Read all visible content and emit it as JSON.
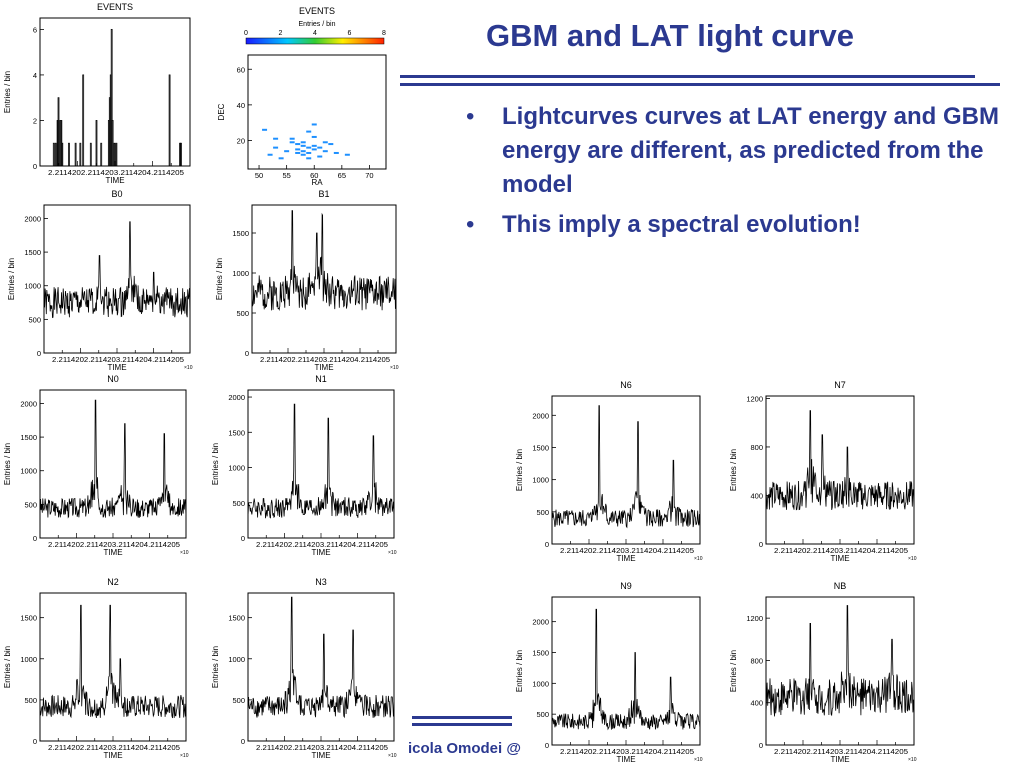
{
  "slide": {
    "title": "GBM and LAT light curve",
    "bullets": [
      "Lightcurves curves at LAT energy and GBM energy are different, as predicted from the model",
      "This imply a spectral evolution!"
    ],
    "bullet_symbol": "•",
    "footer": "icola Omodei @",
    "accent_color": "#2b3990"
  },
  "chart_data": [
    {
      "id": "events-time",
      "type": "bar",
      "title": "EVENTS",
      "xlabel": "TIME",
      "ylabel": "Entries / bin",
      "yticks": [
        0,
        2,
        4,
        6
      ],
      "ylim": [
        0,
        6.5
      ],
      "xtick_labels": [
        "2.2114202.2114203.2114204.2114205"
      ],
      "values": [
        0,
        0,
        0,
        0,
        0,
        0,
        0,
        0,
        0,
        0,
        0,
        0,
        0,
        0,
        1,
        0,
        1,
        0,
        2,
        3,
        0,
        2,
        2,
        1,
        0,
        0,
        0,
        0,
        0,
        0,
        1,
        0,
        0,
        0,
        0,
        0,
        0,
        1,
        0,
        0,
        0,
        0,
        1,
        0,
        0,
        4,
        0,
        0,
        0,
        0,
        0,
        0,
        0,
        1,
        0,
        0,
        0,
        0,
        0,
        2,
        0,
        0,
        0,
        0,
        1,
        0,
        0,
        0,
        0,
        0,
        0,
        0,
        2,
        3,
        4,
        6,
        2,
        0,
        1,
        0,
        1,
        0,
        0,
        0,
        0,
        0,
        0,
        0,
        0,
        0,
        0,
        0,
        0,
        0,
        0,
        0,
        0,
        0,
        0,
        0,
        0,
        0,
        0,
        0,
        0,
        0,
        0,
        0,
        0,
        0,
        0,
        0,
        0,
        0,
        0,
        0,
        0,
        0,
        0,
        0,
        0,
        0,
        0,
        0,
        0,
        0,
        0,
        0,
        0,
        0,
        0,
        0,
        0,
        0,
        0,
        0,
        4,
        0,
        0,
        0,
        0,
        0,
        0,
        0,
        0,
        0,
        0,
        1,
        1,
        0,
        0,
        0,
        0,
        0,
        0,
        0,
        0,
        0
      ]
    },
    {
      "id": "events-radec",
      "type": "heatmap",
      "title": "EVENTS",
      "xlabel": "RA",
      "ylabel": "DEC",
      "colorbar_label": "Entries / bin",
      "colorbar_ticks": [
        0,
        2,
        4,
        6,
        8
      ],
      "xticks": [
        50,
        55,
        60,
        65,
        70
      ],
      "yticks": [
        20,
        40,
        60
      ],
      "xlim": [
        48,
        73
      ],
      "ylim": [
        4,
        68
      ],
      "points": [
        [
          51,
          26
        ],
        [
          53,
          21
        ],
        [
          52,
          12
        ],
        [
          56,
          19
        ],
        [
          57,
          18
        ],
        [
          58,
          17
        ],
        [
          58,
          14
        ],
        [
          59,
          16
        ],
        [
          60,
          15
        ],
        [
          61,
          16
        ],
        [
          62,
          14
        ],
        [
          59,
          13
        ],
        [
          57,
          15
        ],
        [
          60,
          17
        ],
        [
          58,
          12
        ],
        [
          55,
          14
        ],
        [
          63,
          18
        ],
        [
          54,
          10
        ],
        [
          59,
          10
        ],
        [
          61,
          11
        ],
        [
          64,
          13
        ],
        [
          60,
          22
        ],
        [
          59,
          25
        ],
        [
          60,
          29
        ],
        [
          56,
          21
        ],
        [
          62,
          19
        ],
        [
          58,
          19
        ],
        [
          57,
          13
        ],
        [
          53,
          16
        ],
        [
          66,
          12
        ]
      ]
    },
    {
      "id": "b0",
      "type": "line",
      "title": "B0",
      "xlabel": "TIME",
      "ylabel": "Entries / bin",
      "yticks": [
        0,
        500,
        1000,
        1500,
        2000
      ],
      "ylim": [
        0,
        2200
      ],
      "xtick_labels": [
        "2.2114202.2114203.2114204.2114205"
      ],
      "exponent": "×10",
      "base": 750,
      "noise": 230,
      "peaks": [
        [
          0.38,
          1450
        ],
        [
          0.59,
          1950
        ],
        [
          0.75,
          1200
        ]
      ],
      "seed": 1
    },
    {
      "id": "b1",
      "type": "line",
      "title": "B1",
      "xlabel": "TIME",
      "ylabel": "Entries / bin",
      "yticks": [
        0,
        500,
        1000,
        1500
      ],
      "ylim": [
        0,
        1850
      ],
      "xtick_labels": [
        "2.2114202.2114203.2114204.2114205"
      ],
      "exponent": "×10",
      "base": 750,
      "noise": 220,
      "peaks": [
        [
          0.28,
          1780
        ],
        [
          0.49,
          1650
        ],
        [
          0.45,
          1500
        ]
      ],
      "seed": 2
    },
    {
      "id": "n0",
      "type": "line",
      "title": "N0",
      "xlabel": "TIME",
      "ylabel": "Entries / bin",
      "yticks": [
        0,
        500,
        1000,
        1500,
        2000
      ],
      "ylim": [
        0,
        2200
      ],
      "xtick_labels": [
        "2.2114202.2114203.2114204.2114205"
      ],
      "exponent": "×10",
      "base": 450,
      "noise": 150,
      "peaks": [
        [
          0.38,
          2050
        ],
        [
          0.58,
          1700
        ],
        [
          0.85,
          1550
        ]
      ],
      "seed": 3
    },
    {
      "id": "n1",
      "type": "line",
      "title": "N1",
      "xlabel": "TIME",
      "ylabel": "Entries / bin",
      "yticks": [
        0,
        500,
        1000,
        1500,
        2000
      ],
      "ylim": [
        0,
        2100
      ],
      "xtick_labels": [
        "2.2114202.2114203.2114204.2114205"
      ],
      "exponent": "×10",
      "base": 430,
      "noise": 150,
      "peaks": [
        [
          0.32,
          1900
        ],
        [
          0.55,
          1700
        ],
        [
          0.86,
          1450
        ]
      ],
      "seed": 4
    },
    {
      "id": "n6",
      "type": "line",
      "title": "N6",
      "xlabel": "TIME",
      "ylabel": "Entries / bin",
      "yticks": [
        0,
        500,
        1000,
        1500,
        2000
      ],
      "ylim": [
        0,
        2300
      ],
      "xtick_labels": [
        "2.2114202.2114203.2114204.2114205"
      ],
      "exponent": "×10",
      "base": 400,
      "noise": 140,
      "peaks": [
        [
          0.32,
          2150
        ],
        [
          0.58,
          1900
        ],
        [
          0.82,
          1300
        ]
      ],
      "seed": 5
    },
    {
      "id": "n7",
      "type": "line",
      "title": "N7",
      "xlabel": "TIME",
      "ylabel": "Entries / bin",
      "yticks": [
        0,
        400,
        800,
        1200
      ],
      "ylim": [
        0,
        1220
      ],
      "xtick_labels": [
        "2.2114202.2114203.2114204.2114205"
      ],
      "exponent": "×10",
      "base": 400,
      "noise": 120,
      "peaks": [
        [
          0.3,
          1100
        ],
        [
          0.55,
          800
        ],
        [
          0.38,
          900
        ]
      ],
      "seed": 6
    },
    {
      "id": "n2",
      "type": "line",
      "title": "N2",
      "xlabel": "TIME",
      "ylabel": "Entries / bin",
      "yticks": [
        0,
        500,
        1000,
        1500
      ],
      "ylim": [
        0,
        1800
      ],
      "xtick_labels": [
        "2.2114202.2114203.2114204.2114205"
      ],
      "exponent": "×10",
      "base": 420,
      "noise": 140,
      "peaks": [
        [
          0.28,
          1650
        ],
        [
          0.48,
          1650
        ],
        [
          0.55,
          1000
        ]
      ],
      "seed": 7
    },
    {
      "id": "n3",
      "type": "line",
      "title": "N3",
      "xlabel": "TIME",
      "ylabel": "Entries / bin",
      "yticks": [
        0,
        500,
        1000,
        1500
      ],
      "ylim": [
        0,
        1800
      ],
      "xtick_labels": [
        "2.2114202.2114203.2114204.2114205"
      ],
      "exponent": "×10",
      "base": 420,
      "noise": 140,
      "peaks": [
        [
          0.3,
          1750
        ],
        [
          0.52,
          1300
        ],
        [
          0.72,
          1350
        ]
      ],
      "seed": 8
    },
    {
      "id": "n9",
      "type": "line",
      "title": "N9",
      "xlabel": "TIME",
      "ylabel": "Entries / bin",
      "yticks": [
        0,
        500,
        1000,
        1500,
        2000
      ],
      "ylim": [
        0,
        2400
      ],
      "xtick_labels": [
        "2.2114202.2114203.2114204.2114205"
      ],
      "exponent": "×10",
      "base": 380,
      "noise": 130,
      "peaks": [
        [
          0.3,
          2200
        ],
        [
          0.56,
          1500
        ],
        [
          0.8,
          1100
        ]
      ],
      "seed": 9
    },
    {
      "id": "nb",
      "type": "line",
      "title": "NB",
      "xlabel": "TIME",
      "ylabel": "Entries / bin",
      "yticks": [
        0,
        400,
        800,
        1200
      ],
      "ylim": [
        0,
        1400
      ],
      "xtick_labels": [
        "2.2114202.2114203.2114204.2114205"
      ],
      "exponent": "×10",
      "base": 450,
      "noise": 180,
      "peaks": [
        [
          0.3,
          1150
        ],
        [
          0.55,
          1320
        ],
        [
          0.85,
          1000
        ]
      ],
      "seed": 10
    }
  ]
}
